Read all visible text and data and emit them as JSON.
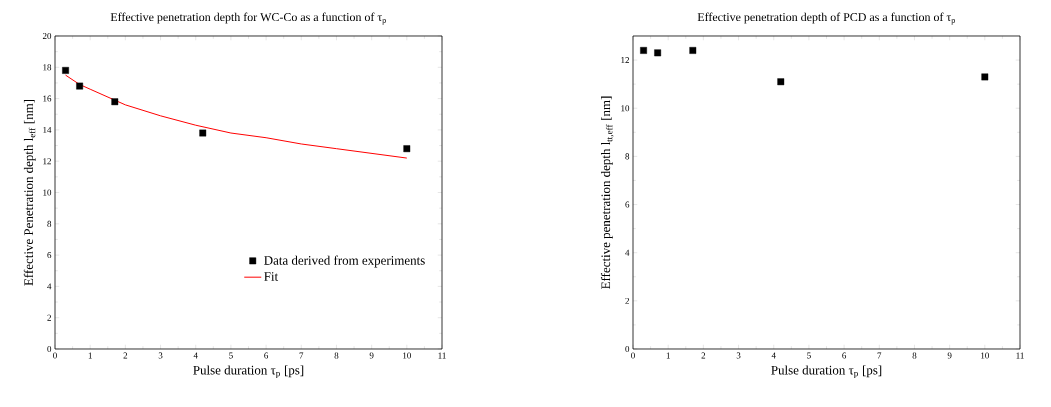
{
  "chart_data": [
    {
      "type": "scatter",
      "title": "Effective penetration depth for WC-Co as a function of τ$_{p}$",
      "xlabel": "Pulse duration τ$_{p}$ [ps]",
      "ylabel": "Effective Penetration depth l$_{eff}$ [nm]",
      "xlim": [
        0,
        11
      ],
      "ylim": [
        0,
        20
      ],
      "xticks": [
        0,
        1,
        2,
        3,
        4,
        5,
        6,
        7,
        8,
        9,
        10,
        11
      ],
      "yticks": [
        0,
        2,
        4,
        6,
        8,
        10,
        12,
        14,
        16,
        18,
        20
      ],
      "grid": false,
      "legend": "bottom right",
      "series": [
        {
          "name": "Data derived from experiments",
          "type": "scatter",
          "marker": "square",
          "color": "#000000",
          "x": [
            0.3,
            0.7,
            1.7,
            4.2,
            10
          ],
          "values": [
            17.8,
            16.8,
            15.8,
            13.8,
            12.8
          ]
        },
        {
          "name": "Fit",
          "type": "line",
          "marker": "none",
          "line_style": "solid",
          "color": "#ff0000",
          "x": [
            0.3,
            0.7,
            1,
            2,
            3,
            4,
            5,
            6,
            7,
            8,
            9,
            10
          ],
          "values": [
            17.5,
            16.9,
            16.6,
            15.6,
            14.9,
            14.3,
            13.8,
            13.5,
            13.1,
            12.8,
            12.5,
            12.2
          ]
        }
      ]
    },
    {
      "type": "scatter",
      "title": "Effective penetration depth of PCD as a function of τ$_{p}$",
      "xlabel": "Pulse duration τ$_{p}$ [ps]",
      "ylabel": "Effective penetration depth l$_{tt,eff}$ [nm]",
      "xlim": [
        0,
        11
      ],
      "ylim": [
        0,
        13
      ],
      "xticks": [
        0,
        1,
        2,
        3,
        4,
        5,
        6,
        7,
        8,
        9,
        10,
        11
      ],
      "yticks": [
        0,
        2,
        4,
        6,
        8,
        10,
        12
      ],
      "grid": false,
      "marker": "square",
      "series": [
        {
          "color": "#000000",
          "x": [
            0.3,
            0.7,
            1.7,
            4.2,
            10
          ],
          "values": [
            12.4,
            12.3,
            12.4,
            11.1,
            11.3
          ]
        }
      ]
    }
  ]
}
